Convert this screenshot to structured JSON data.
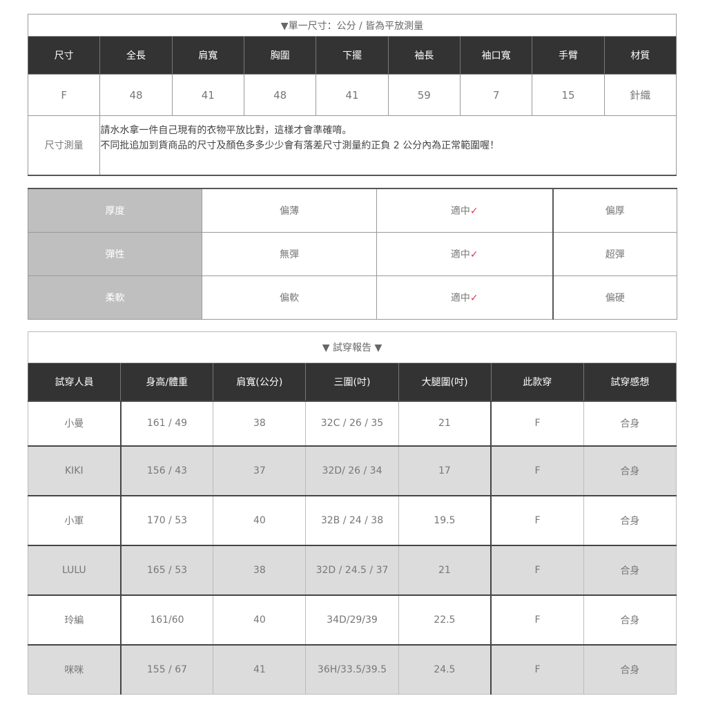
{
  "size_table": {
    "title": "▼單一尺寸：公分 / 皆為平放測量",
    "headers": [
      "尺寸",
      "全長",
      "肩寬",
      "胸圍",
      "下擺",
      "袖長",
      "袖口寬",
      "手臂",
      "材質"
    ],
    "values": [
      "F",
      "48",
      "41",
      "48",
      "41",
      "59",
      "7",
      "15",
      "針織"
    ],
    "note_label": "尺寸測量",
    "note_lines": [
      "請水水拿一件自己現有的衣物平放比對，這樣才會準確唷。",
      "不同批追加到貨商品的尺寸及顏色多多少少會有落差尺寸測量約正負 2 公分內為正常範圍喔！"
    ]
  },
  "feel_table": {
    "check_color": "#e0334e",
    "rows": [
      {
        "label": "厚度",
        "options": [
          "偏薄",
          "適中",
          "偏厚"
        ],
        "selected": 1
      },
      {
        "label": "彈性",
        "options": [
          "無彈",
          "適中",
          "超彈"
        ],
        "selected": 1
      },
      {
        "label": "柔軟",
        "options": [
          "偏軟",
          "適中",
          "偏硬"
        ],
        "selected": 1
      }
    ],
    "check_mark": "✓"
  },
  "fit_report": {
    "title": "▼ 試穿報告 ▼",
    "headers": [
      "試穿人員",
      "身高/體重",
      "肩寬(公分)",
      "三圍(吋)",
      "大腿圍(吋)",
      "此款穿",
      "試穿感想"
    ],
    "rows": [
      [
        "小曼",
        "161 / 49",
        "38",
        "32C / 26 / 35",
        "21",
        "F",
        "合身"
      ],
      [
        "KIKI",
        "156 / 43",
        "37",
        "32D/ 26 / 34",
        "17",
        "F",
        "合身"
      ],
      [
        "小軍",
        "170 / 53",
        "40",
        "32B / 24 / 38",
        "19.5",
        "F",
        "合身"
      ],
      [
        "LULU",
        "165 / 53",
        "38",
        "32D / 24.5 / 37",
        "21",
        "F",
        "合身"
      ],
      [
        "玲編",
        "161/60",
        "40",
        "34D/29/39",
        "22.5",
        "F",
        "合身"
      ],
      [
        "咪咪",
        "155 / 67",
        "41",
        "36H/33.5/39.5",
        "24.5",
        "F",
        "合身"
      ]
    ]
  }
}
